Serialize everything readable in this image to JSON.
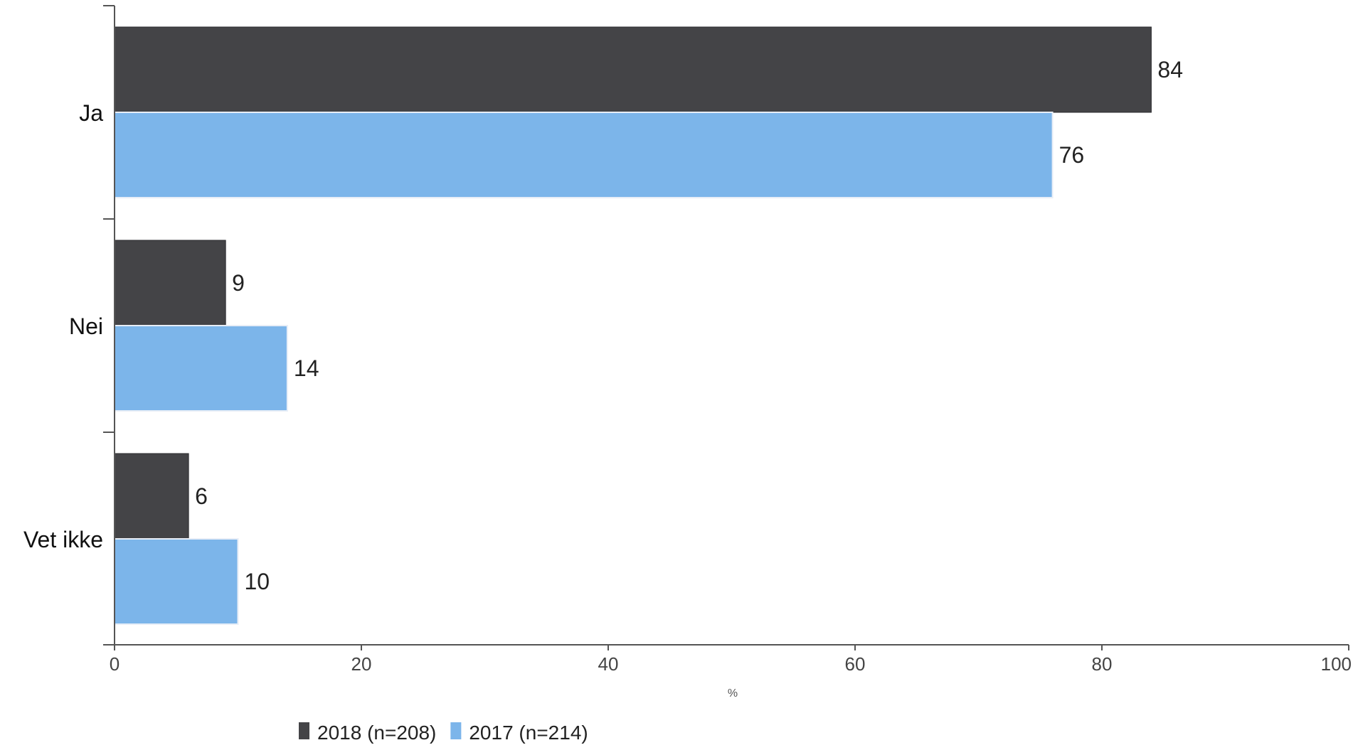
{
  "chart_data": {
    "type": "bar",
    "orientation": "horizontal",
    "categories": [
      "Ja",
      "Nei",
      "Vet ikke"
    ],
    "series": [
      {
        "name": "2018 (n=208)",
        "values": [
          84,
          9,
          6
        ],
        "color": "#444447"
      },
      {
        "name": "2017 (n=214)",
        "values": [
          76,
          14,
          10
        ],
        "color": "#7cb5ea"
      }
    ],
    "title": "",
    "xlabel": "%",
    "ylabel": "",
    "xlim": [
      0,
      100
    ],
    "xticks": [
      0,
      20,
      40,
      60,
      80,
      100
    ],
    "data_labels": true,
    "grid": false,
    "legend_position": "bottom-left"
  }
}
